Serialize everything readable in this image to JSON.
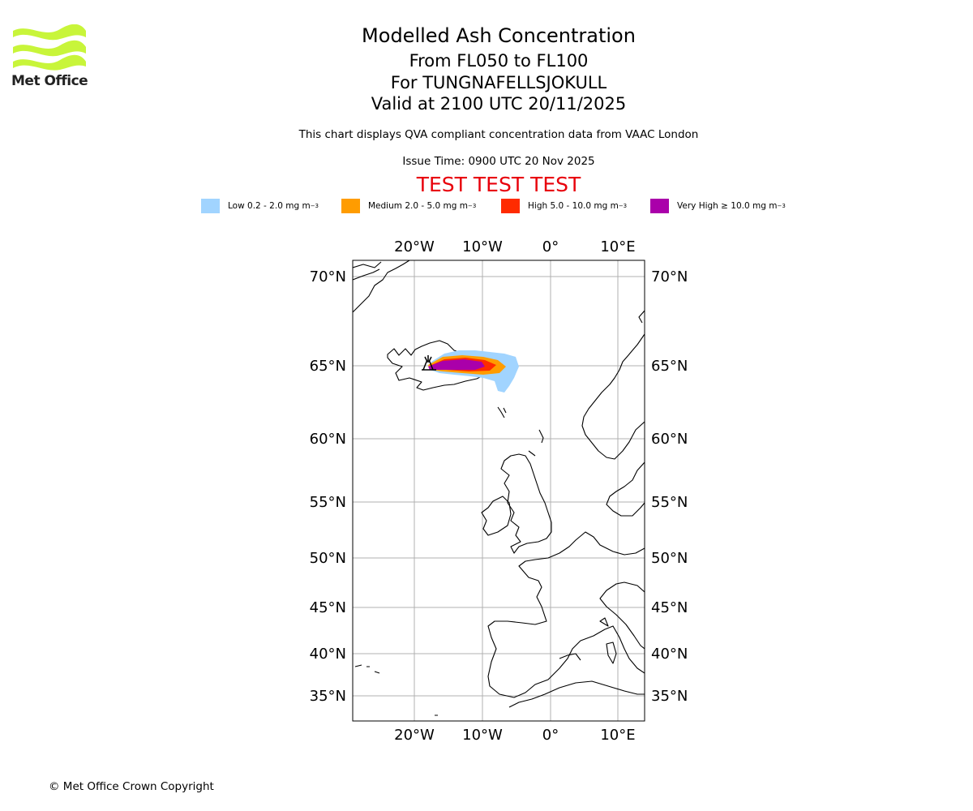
{
  "header": {
    "logo_text": "Met Office",
    "title": "Modelled Ash Concentration",
    "levels": "From FL050 to FL100",
    "volcano": "For TUNGNAFELLSJOKULL",
    "valid": "Valid at 2100 UTC 20/11/2025",
    "description": "This chart displays QVA compliant concentration data from VAAC London",
    "issue_time": "Issue Time: 0900 UTC 20 Nov 2025",
    "test_banner": "TEST TEST TEST"
  },
  "legend": [
    {
      "label": "Low 0.2 - 2.0 mg m",
      "superscript": "−3",
      "color": "#a1d4ff"
    },
    {
      "label": "Medium 2.0 - 5.0 mg m",
      "superscript": "−3",
      "color": "#ff9c00"
    },
    {
      "label": "High 5.0 - 10.0 mg m",
      "superscript": "−3",
      "color": "#ff2b00"
    },
    {
      "label": "Very High  ≥  10.0 mg m",
      "superscript": "−3",
      "color": "#aa00aa"
    }
  ],
  "map": {
    "lon_labels": [
      "20°W",
      "10°W",
      "0°",
      "10°E"
    ],
    "lat_labels": [
      "70°N",
      "65°N",
      "60°N",
      "55°N",
      "50°N",
      "45°N",
      "40°N",
      "35°N"
    ]
  },
  "footer": {
    "copyright": "© Met Office Crown Copyright"
  }
}
